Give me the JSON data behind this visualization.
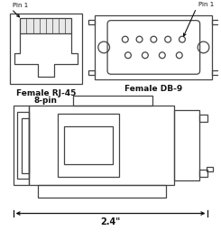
{
  "bg_color": "#ffffff",
  "line_color": "#444444",
  "text_color": "#111111",
  "label_rj45_line1": "Female RJ-45",
  "label_rj45_line2": "8-pin",
  "label_db9": "Female DB-9",
  "pin1_label": "Pin 1",
  "dimension_label": "2.4\""
}
